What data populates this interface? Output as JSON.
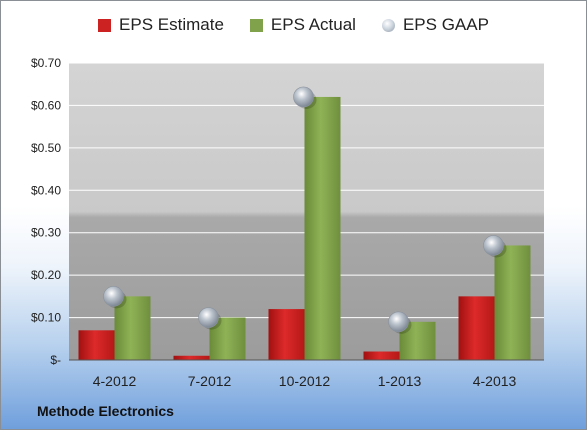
{
  "company": "Methode Electronics",
  "chart_data": {
    "type": "bar",
    "categories": [
      "4-2012",
      "7-2012",
      "10-2012",
      "1-2013",
      "4-2013"
    ],
    "series": [
      {
        "name": "EPS Estimate",
        "kind": "bar",
        "color": "#cc2222",
        "values": [
          0.07,
          0.01,
          0.12,
          0.02,
          0.15
        ]
      },
      {
        "name": "EPS Actual",
        "kind": "bar",
        "color": "#80a24a",
        "values": [
          0.15,
          0.1,
          0.62,
          0.09,
          0.27
        ]
      },
      {
        "name": "EPS GAAP",
        "kind": "marker",
        "color": "#a7afb9",
        "values": [
          0.15,
          0.1,
          0.62,
          0.09,
          0.27
        ]
      }
    ],
    "ylim": [
      0,
      0.7
    ],
    "yticks": [
      0,
      0.1,
      0.2,
      0.3,
      0.4,
      0.5,
      0.6,
      0.7
    ],
    "ytick_labels": [
      "$-",
      "$0.10",
      "$0.20",
      "$0.30",
      "$0.40",
      "$0.50",
      "$0.60",
      "$0.70"
    ],
    "grid": true,
    "legend_position": "top"
  }
}
